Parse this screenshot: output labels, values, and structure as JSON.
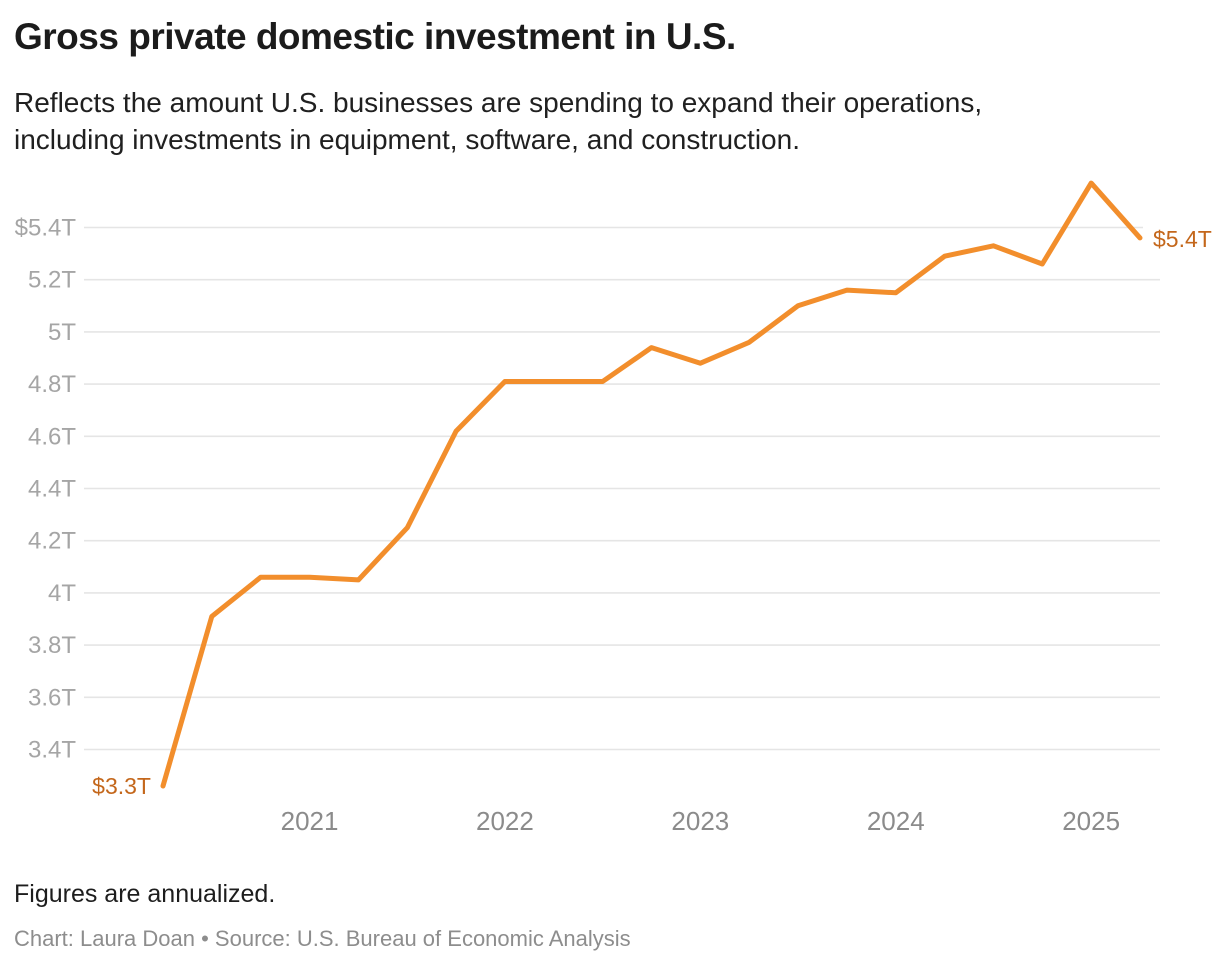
{
  "header": {
    "title": "Gross private domestic investment in U.S.",
    "subtitle_lines": [
      "Reflects the amount U.S. businesses are spending to expand their operations,",
      "including investments in equipment, software, and construction."
    ]
  },
  "footer": {
    "note": "Figures are annualized.",
    "credit": "Chart: Laura Doan • Source: U.S. Bureau of Economic Analysis"
  },
  "colors": {
    "line": "#F28E2C",
    "point_label": "#C4671B",
    "grid": "#E5E5E5",
    "y_tick_label": "#A5A5A5",
    "x_tick_label": "#8B8B8B",
    "title_text": "#1B1B1B",
    "credit_text": "#8D8D8D"
  },
  "chart_data": {
    "type": "line",
    "title": "Gross private domestic investment in U.S.",
    "unit": "trillions of U.S. dollars, annualized",
    "x": [
      "2020 Q2",
      "2020 Q3",
      "2020 Q4",
      "2021 Q1",
      "2021 Q2",
      "2021 Q3",
      "2021 Q4",
      "2022 Q1",
      "2022 Q2",
      "2022 Q3",
      "2022 Q4",
      "2023 Q1",
      "2023 Q2",
      "2023 Q3",
      "2023 Q4",
      "2024 Q1",
      "2024 Q2",
      "2024 Q3",
      "2024 Q4",
      "2025 Q1",
      "2025 Q2"
    ],
    "values": [
      3.26,
      3.91,
      4.06,
      4.06,
      4.05,
      4.25,
      4.62,
      4.81,
      4.81,
      4.81,
      4.94,
      4.88,
      4.96,
      5.1,
      5.16,
      5.15,
      5.29,
      5.33,
      5.26,
      5.57,
      5.36
    ],
    "start_label": "$3.3T",
    "end_label": "$5.4T",
    "y_ticks": [
      {
        "value": 5.4,
        "label": "$5.4T"
      },
      {
        "value": 5.2,
        "label": "5.2T"
      },
      {
        "value": 5.0,
        "label": "5T"
      },
      {
        "value": 4.8,
        "label": "4.8T"
      },
      {
        "value": 4.6,
        "label": "4.6T"
      },
      {
        "value": 4.4,
        "label": "4.4T"
      },
      {
        "value": 4.2,
        "label": "4.2T"
      },
      {
        "value": 4.0,
        "label": "4T"
      },
      {
        "value": 3.8,
        "label": "3.8T"
      },
      {
        "value": 3.6,
        "label": "3.6T"
      },
      {
        "value": 3.4,
        "label": "3.4T"
      }
    ],
    "x_ticks": [
      {
        "index": 3,
        "label": "2021"
      },
      {
        "index": 7,
        "label": "2022"
      },
      {
        "index": 11,
        "label": "2023"
      },
      {
        "index": 15,
        "label": "2024"
      },
      {
        "index": 19,
        "label": "2025"
      }
    ],
    "ylim": [
      3.2,
      5.65
    ],
    "grid": true,
    "legend": false
  }
}
